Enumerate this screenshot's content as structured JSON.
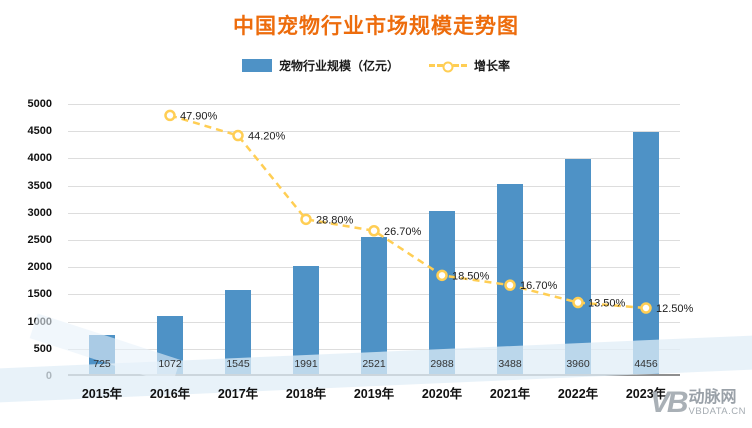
{
  "title": "中国宠物行业市场规模走势图",
  "legend": {
    "bars": "宠物行业规模（亿元）",
    "line": "增长率"
  },
  "watermark": {
    "logo": "VB",
    "name": "动脉网",
    "site": "VBDATA.CN"
  },
  "colors": {
    "title": "#ED6C0C",
    "bar": "#4E92C6",
    "line": "#FFCE54",
    "marker_fill": "#FFFFFF",
    "grid": "#DDDDDD",
    "axis": "#8F8F8F",
    "label_text": "#1C1C1C"
  },
  "chart_data": {
    "type": "bar",
    "title": "中国宠物行业市场规模走势图",
    "categories": [
      "2015年",
      "2016年",
      "2017年",
      "2018年",
      "2019年",
      "2020年",
      "2021年",
      "2022年",
      "2023年"
    ],
    "series": [
      {
        "name": "宠物行业规模（亿元）",
        "type": "bar",
        "values": [
          725,
          1072,
          1545,
          1991,
          2521,
          2988,
          3488,
          3960,
          4456
        ]
      },
      {
        "name": "增长率",
        "type": "line",
        "values": [
          null,
          47.9,
          44.2,
          28.8,
          26.7,
          18.5,
          16.7,
          13.5,
          12.5
        ],
        "labels": [
          null,
          "47.90%",
          "44.20%",
          "28.80%",
          "26.70%",
          "18.50%",
          "16.70%",
          "13.50%",
          "12.50%"
        ]
      }
    ],
    "xlabel": "",
    "ylabel": "",
    "ylim": [
      0,
      5000
    ],
    "ytick_step": 500,
    "right_axis_scale": 100,
    "grid": true,
    "legend_position": "top"
  }
}
